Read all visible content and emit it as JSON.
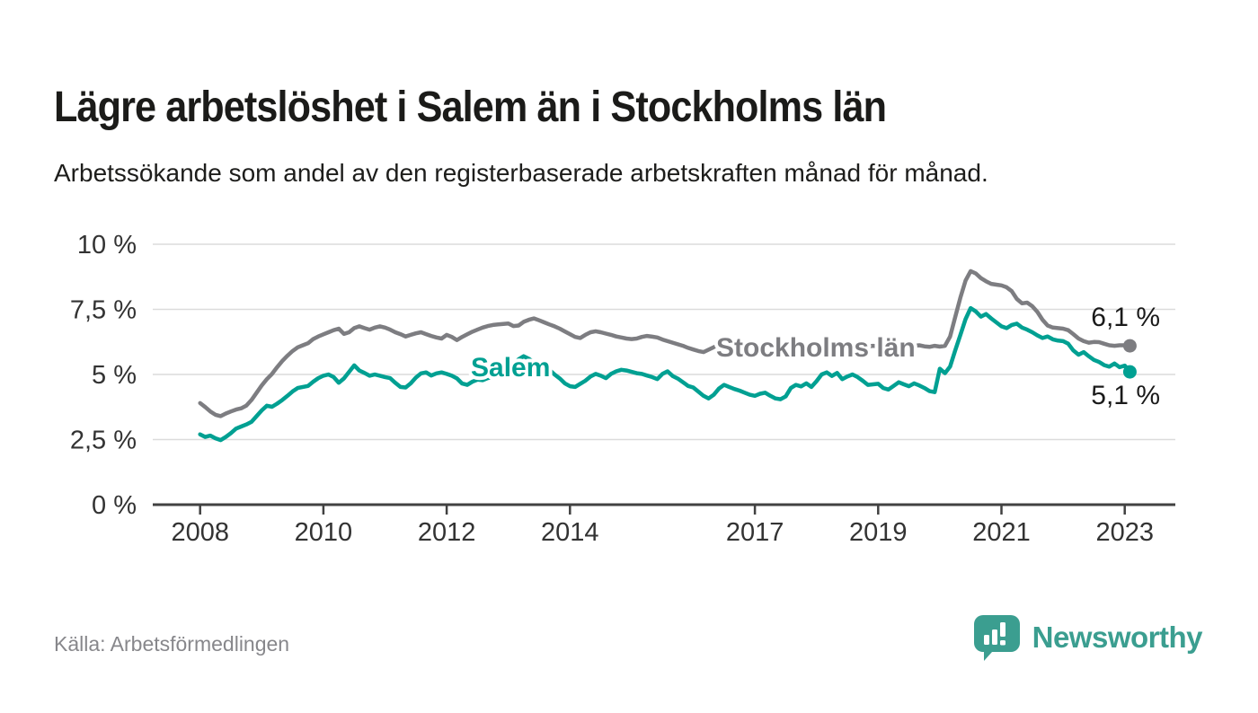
{
  "header": {
    "title": "Lägre arbetslöshet i Salem än i Stockholms län",
    "subtitle": "Arbetssökande som andel av den registerbaserade arbetskraften månad för månad."
  },
  "chart_data": {
    "type": "line",
    "unit": "%",
    "frequency": "monthly",
    "start": "2008-01",
    "end": "2023-02",
    "ylim": [
      0,
      10
    ],
    "grid": true,
    "legend_position": "inline-labels",
    "y_ticks": [
      {
        "label": "10 %",
        "value": 10
      },
      {
        "label": "7,5 %",
        "value": 7.5
      },
      {
        "label": "5 %",
        "value": 5
      },
      {
        "label": "2,5 %",
        "value": 2.5
      },
      {
        "label": "0 %",
        "value": 0
      }
    ],
    "x_ticks": [
      {
        "label": "2008",
        "year": 2008
      },
      {
        "label": "2010",
        "year": 2010
      },
      {
        "label": "2012",
        "year": 2012
      },
      {
        "label": "2014",
        "year": 2014
      },
      {
        "label": "2017",
        "year": 2017
      },
      {
        "label": "2019",
        "year": 2019
      },
      {
        "label": "2021",
        "year": 2021
      },
      {
        "label": "2023",
        "year": 2023
      }
    ],
    "series": [
      {
        "name": "Stockholms län",
        "color": "#7d7d81",
        "end_label": "6,1 %",
        "end_value": 6.1,
        "values": [
          3.9,
          3.75,
          3.58,
          3.45,
          3.4,
          3.5,
          3.58,
          3.65,
          3.7,
          3.8,
          4.02,
          4.3,
          4.58,
          4.82,
          5.02,
          5.28,
          5.52,
          5.72,
          5.9,
          6.04,
          6.12,
          6.2,
          6.36,
          6.46,
          6.54,
          6.62,
          6.7,
          6.76,
          6.56,
          6.62,
          6.78,
          6.85,
          6.78,
          6.72,
          6.8,
          6.85,
          6.8,
          6.72,
          6.62,
          6.55,
          6.46,
          6.52,
          6.58,
          6.62,
          6.55,
          6.48,
          6.42,
          6.38,
          6.52,
          6.44,
          6.32,
          6.44,
          6.54,
          6.64,
          6.72,
          6.8,
          6.86,
          6.9,
          6.92,
          6.94,
          6.96,
          6.86,
          6.88,
          7.02,
          7.1,
          7.15,
          7.08,
          7.0,
          6.92,
          6.85,
          6.76,
          6.65,
          6.55,
          6.44,
          6.4,
          6.52,
          6.62,
          6.66,
          6.62,
          6.57,
          6.52,
          6.46,
          6.42,
          6.38,
          6.36,
          6.38,
          6.44,
          6.48,
          6.45,
          6.42,
          6.34,
          6.28,
          6.22,
          6.16,
          6.1,
          6.02,
          5.96,
          5.9,
          5.86,
          5.95,
          6.05,
          6.12,
          6.08,
          6.02,
          6.08,
          6.14,
          6.1,
          6.12,
          6.1,
          6.15,
          6.12,
          6.08,
          6.12,
          6.18,
          6.14,
          6.1,
          6.15,
          6.2,
          6.16,
          6.12,
          6.15,
          6.2,
          6.16,
          6.1,
          6.12,
          6.08,
          6.05,
          6.1,
          6.08,
          6.04,
          6.08,
          6.1,
          6.08,
          6.05,
          6.08,
          6.1,
          6.12,
          6.1,
          6.07,
          6.1,
          6.12,
          6.08,
          6.06,
          6.1,
          6.07,
          6.1,
          6.45,
          7.2,
          7.95,
          8.6,
          8.97,
          8.88,
          8.7,
          8.58,
          8.48,
          8.45,
          8.42,
          8.35,
          8.2,
          7.9,
          7.73,
          7.76,
          7.62,
          7.4,
          7.1,
          6.88,
          6.8,
          6.78,
          6.76,
          6.7,
          6.55,
          6.38,
          6.28,
          6.22,
          6.25,
          6.24,
          6.18,
          6.12,
          6.1,
          6.12,
          6.12,
          6.1
        ]
      },
      {
        "name": "Salem",
        "color": "#00a092",
        "end_label": "5,1 %",
        "end_value": 5.1,
        "values": [
          2.7,
          2.6,
          2.65,
          2.55,
          2.48,
          2.6,
          2.75,
          2.92,
          3.0,
          3.08,
          3.18,
          3.4,
          3.62,
          3.8,
          3.76,
          3.88,
          4.02,
          4.18,
          4.35,
          4.48,
          4.52,
          4.56,
          4.72,
          4.86,
          4.95,
          5.0,
          4.9,
          4.68,
          4.85,
          5.1,
          5.35,
          5.15,
          5.06,
          4.95,
          5.0,
          4.95,
          4.9,
          4.86,
          4.68,
          4.52,
          4.5,
          4.66,
          4.88,
          5.04,
          5.08,
          4.96,
          5.04,
          5.08,
          5.02,
          4.95,
          4.85,
          4.65,
          4.6,
          4.72,
          4.8,
          4.78,
          4.86,
          4.92,
          4.96,
          5.05,
          5.18,
          5.38,
          5.58,
          5.7,
          5.6,
          5.45,
          5.35,
          5.28,
          5.18,
          5.0,
          4.85,
          4.66,
          4.55,
          4.52,
          4.64,
          4.76,
          4.92,
          5.02,
          4.95,
          4.86,
          5.02,
          5.12,
          5.18,
          5.15,
          5.1,
          5.05,
          5.02,
          4.96,
          4.9,
          4.82,
          5.02,
          5.12,
          4.94,
          4.84,
          4.7,
          4.56,
          4.5,
          4.34,
          4.18,
          4.08,
          4.22,
          4.46,
          4.6,
          4.52,
          4.44,
          4.38,
          4.3,
          4.22,
          4.18,
          4.26,
          4.3,
          4.18,
          4.08,
          4.05,
          4.16,
          4.48,
          4.6,
          4.54,
          4.66,
          4.52,
          4.74,
          5.0,
          5.08,
          4.94,
          5.06,
          4.82,
          4.92,
          5.0,
          4.9,
          4.76,
          4.6,
          4.62,
          4.64,
          4.48,
          4.42,
          4.56,
          4.7,
          4.62,
          4.55,
          4.66,
          4.58,
          4.48,
          4.36,
          4.32,
          5.22,
          5.05,
          5.3,
          5.92,
          6.52,
          7.12,
          7.55,
          7.42,
          7.22,
          7.32,
          7.15,
          7.0,
          6.85,
          6.78,
          6.9,
          6.95,
          6.8,
          6.72,
          6.62,
          6.5,
          6.4,
          6.46,
          6.35,
          6.3,
          6.28,
          6.18,
          5.92,
          5.76,
          5.86,
          5.7,
          5.56,
          5.48,
          5.36,
          5.3,
          5.42,
          5.28,
          5.34,
          5.1
        ]
      }
    ]
  },
  "footer": {
    "source": "Källa: Arbetsförmedlingen",
    "logo_text": "Newsworthy"
  },
  "colors": {
    "salem": "#00a092",
    "stockholm": "#7d7d81",
    "logo_teal": "#3b9e90",
    "grid": "#dcdcdc",
    "axis": "#414141",
    "text_dark": "#1b1b19",
    "tick_text": "#333333",
    "source_text": "#87878b"
  }
}
